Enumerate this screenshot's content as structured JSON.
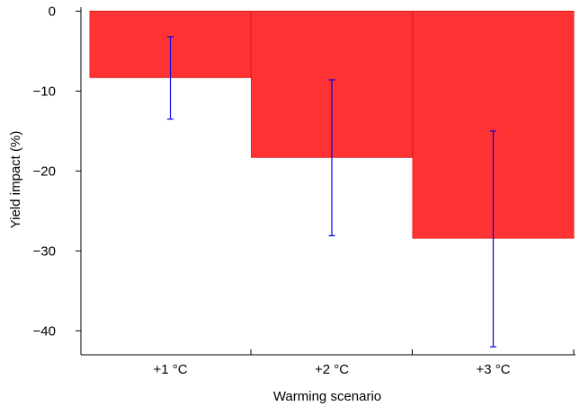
{
  "chart_data": {
    "type": "bar",
    "title": "",
    "xlabel": "Warming scenario",
    "ylabel": "Yield impact (%)",
    "categories": [
      "+1 °C",
      "+2 °C",
      "+3 °C"
    ],
    "values": [
      -8.3,
      -18.3,
      -28.4
    ],
    "error_low": [
      -13.5,
      -28.1,
      -42.0
    ],
    "error_high": [
      -3.2,
      -8.6,
      -15.0
    ],
    "ylim": [
      -43,
      0.5
    ],
    "yticks": [
      0,
      -10,
      -20,
      -30,
      -40
    ],
    "ytick_labels": [
      "0",
      "−10",
      "−20",
      "−30",
      "−40"
    ],
    "grid": false,
    "legend": "none",
    "colors": {
      "bar_fill": "#ff3333",
      "bar_edge": "#e62020",
      "error_bar": "#0000ee",
      "axis": "#000000"
    }
  }
}
